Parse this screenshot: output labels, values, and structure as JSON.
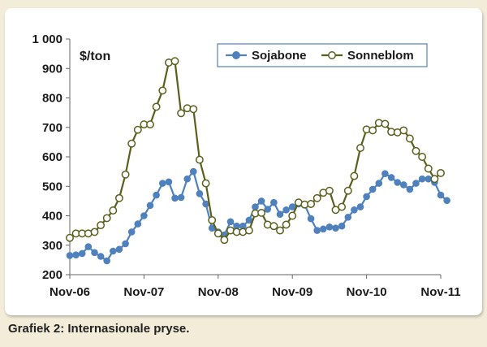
{
  "caption": "Grafiek 2: Internasionale pryse.",
  "chart_data": {
    "type": "line",
    "unit_label": "$/ton",
    "ylim": [
      200,
      1000
    ],
    "y_ticks": [
      "200",
      "300",
      "400",
      "500",
      "600",
      "700",
      "800",
      "900",
      "1 000"
    ],
    "y_tick_values": [
      200,
      300,
      400,
      500,
      600,
      700,
      800,
      900,
      1000
    ],
    "x_ticks": [
      "Nov-06",
      "Nov-07",
      "Nov-08",
      "Nov-09",
      "Nov-10",
      "Nov-11"
    ],
    "legend_position": "top-right",
    "grid": "none",
    "series": [
      {
        "name": "Sojabone",
        "color": "#4f81bd",
        "marker": "filled-circle",
        "values": [
          265,
          267,
          272,
          295,
          275,
          262,
          247,
          280,
          286,
          305,
          345,
          372,
          400,
          435,
          470,
          510,
          515,
          460,
          462,
          525,
          550,
          475,
          440,
          358,
          345,
          335,
          380,
          365,
          365,
          385,
          430,
          450,
          422,
          445,
          405,
          420,
          430,
          440,
          437,
          390,
          350,
          355,
          362,
          358,
          365,
          395,
          420,
          430,
          465,
          490,
          510,
          543,
          530,
          513,
          505,
          490,
          510,
          525,
          525,
          513,
          470,
          452
        ]
      },
      {
        "name": "Sonneblom",
        "color": "#5b5f1c",
        "marker": "open-circle",
        "values": [
          325,
          340,
          340,
          340,
          345,
          368,
          392,
          418,
          460,
          540,
          645,
          692,
          710,
          710,
          770,
          825,
          920,
          925,
          748,
          765,
          762,
          590,
          510,
          385,
          340,
          318,
          350,
          345,
          345,
          350,
          408,
          410,
          370,
          365,
          350,
          370,
          400,
          445,
          438,
          440,
          460,
          478,
          485,
          420,
          430,
          485,
          535,
          630,
          693,
          690,
          715,
          712,
          685,
          683,
          690,
          662,
          620,
          600,
          560,
          525,
          545
        ]
      }
    ]
  }
}
